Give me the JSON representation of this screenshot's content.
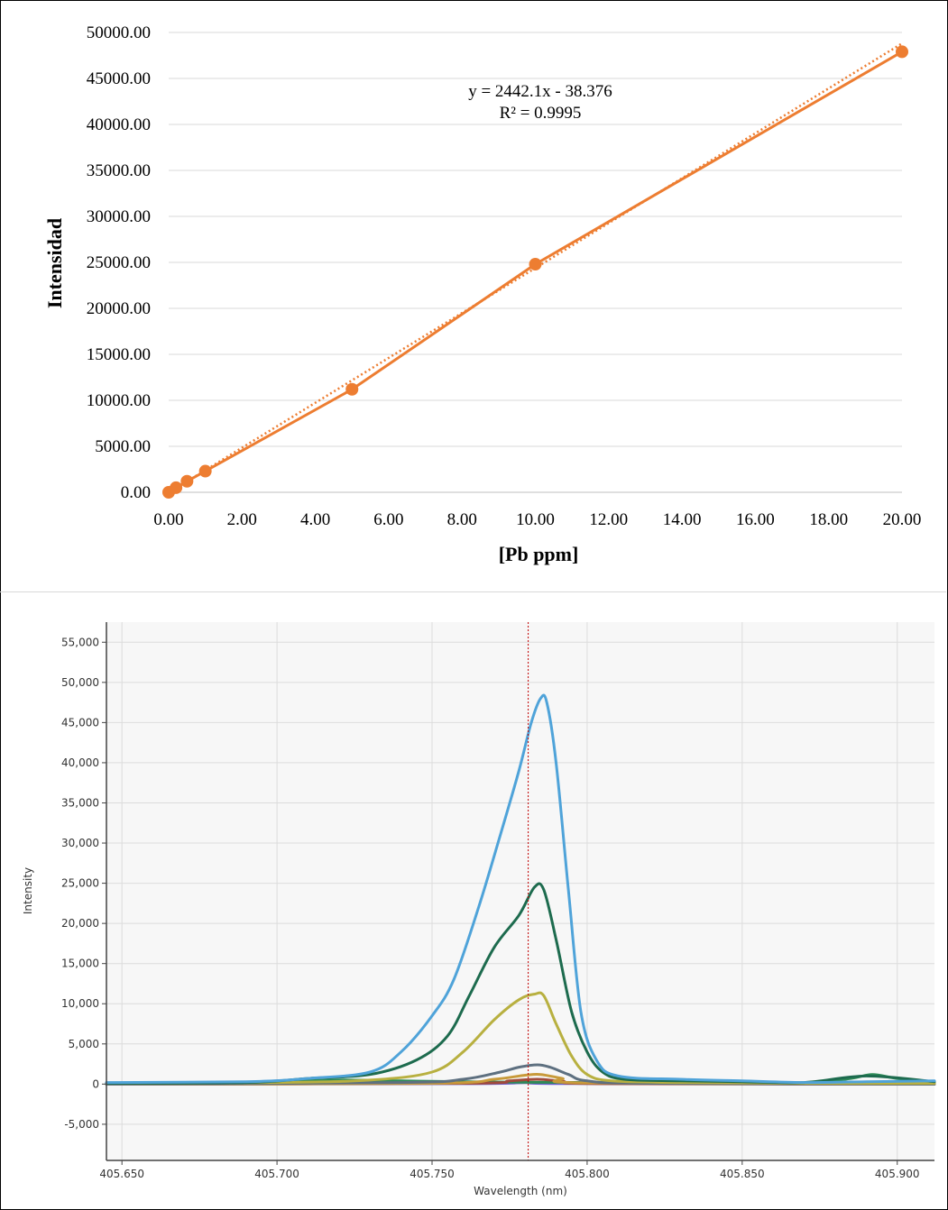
{
  "chart_data": [
    {
      "type": "scatter",
      "xlabel": "[Pb ppm]",
      "ylabel": "Intensidad",
      "xlim": [
        0,
        20
      ],
      "ylim": [
        0,
        50000
      ],
      "x_ticks": [
        "0.00",
        "2.00",
        "4.00",
        "6.00",
        "8.00",
        "10.00",
        "12.00",
        "14.00",
        "16.00",
        "18.00",
        "20.00"
      ],
      "y_ticks": [
        "0.00",
        "5000.00",
        "10000.00",
        "15000.00",
        "20000.00",
        "25000.00",
        "30000.00",
        "35000.00",
        "40000.00",
        "45000.00",
        "50000.00"
      ],
      "grid": true,
      "series": [
        {
          "color": "#ED7D31",
          "x": [
            0,
            0.2,
            0.5,
            1,
            5,
            10,
            20
          ],
          "y": [
            0,
            500,
            1200,
            2300,
            11200,
            24800,
            47900
          ]
        }
      ],
      "trendline": {
        "slope": 2442.1,
        "intercept": -38.376,
        "style": "dotted",
        "color": "#ED7D31"
      },
      "annotations": [
        "y = 2442.1x - 38.376",
        "R² = 0.9995"
      ]
    },
    {
      "type": "line",
      "xlabel": "Wavelength (nm)",
      "ylabel": "Intensity",
      "xlim": [
        405.645,
        405.912
      ],
      "ylim": [
        -9500,
        57500
      ],
      "x_ticks": [
        "405.650",
        "405.700",
        "405.750",
        "405.800",
        "405.850",
        "405.900"
      ],
      "y_ticks": [
        "-5,000",
        "0",
        "5,000",
        "10,000",
        "15,000",
        "20,000",
        "25,000",
        "30,000",
        "35,000",
        "40,000",
        "45,000",
        "50,000",
        "55,000"
      ],
      "grid": true,
      "reference_line": {
        "x": 405.781,
        "color": "#C00000",
        "style": "dotted"
      },
      "series": [
        {
          "color": "#4FA3D9",
          "x": [
            405.645,
            405.69,
            405.71,
            405.73,
            405.74,
            405.75,
            405.757,
            405.765,
            405.772,
            405.778,
            405.782,
            405.785,
            405.787,
            405.79,
            405.794,
            405.798,
            405.803,
            405.81,
            405.83,
            405.85,
            405.87,
            405.89,
            405.912
          ],
          "y": [
            200,
            300,
            700,
            1500,
            4000,
            8500,
            13000,
            22000,
            31000,
            39000,
            45000,
            48000,
            47500,
            40000,
            24000,
            9000,
            3000,
            1000,
            600,
            400,
            200,
            300,
            400
          ]
        },
        {
          "color": "#1D6B4E",
          "x": [
            405.645,
            405.69,
            405.71,
            405.73,
            405.745,
            405.755,
            405.762,
            405.77,
            405.778,
            405.783,
            405.786,
            405.79,
            405.795,
            405.8,
            405.805,
            405.812,
            405.83,
            405.85,
            405.87,
            405.89,
            405.912
          ],
          "y": [
            100,
            200,
            700,
            1200,
            3000,
            6000,
            11000,
            17000,
            21000,
            24500,
            24200,
            18000,
            9000,
            4000,
            1500,
            600,
            400,
            300,
            200,
            1000,
            300
          ]
        },
        {
          "color": "#B8B040",
          "x": [
            405.645,
            405.7,
            405.73,
            405.75,
            405.76,
            405.77,
            405.778,
            405.783,
            405.786,
            405.79,
            405.795,
            405.8,
            405.808,
            405.83,
            405.87,
            405.912
          ],
          "y": [
            100,
            200,
            500,
            1500,
            4000,
            8000,
            10500,
            11200,
            11000,
            7500,
            3500,
            1200,
            400,
            200,
            100,
            100
          ]
        },
        {
          "color": "#5E7080",
          "x": [
            405.645,
            405.74,
            405.76,
            405.772,
            405.778,
            405.784,
            405.788,
            405.794,
            405.8,
            405.82,
            405.912
          ],
          "y": [
            0,
            200,
            600,
            1500,
            2100,
            2400,
            2100,
            1200,
            400,
            100,
            0
          ]
        },
        {
          "color": "#C89A3A",
          "x": [
            405.645,
            405.75,
            405.77,
            405.78,
            405.785,
            405.792,
            405.8,
            405.912
          ],
          "y": [
            0,
            100,
            600,
            1100,
            1200,
            700,
            150,
            0
          ]
        },
        {
          "color": "#A04A3A",
          "x": [
            405.645,
            405.76,
            405.775,
            405.784,
            405.792,
            405.805,
            405.912
          ],
          "y": [
            0,
            100,
            400,
            600,
            350,
            50,
            0
          ]
        },
        {
          "color": "#2E8B57",
          "x": [
            405.645,
            405.7,
            405.72,
            405.74,
            405.76,
            405.8,
            405.83,
            405.85,
            405.87,
            405.885,
            405.892,
            405.9,
            405.912
          ],
          "y": [
            0,
            300,
            500,
            400,
            300,
            200,
            400,
            200,
            100,
            700,
            1200,
            700,
            300
          ]
        },
        {
          "color": "#6A5ACD",
          "x": [
            405.645,
            405.76,
            405.78,
            405.795,
            405.912
          ],
          "y": [
            0,
            50,
            200,
            60,
            0
          ]
        }
      ]
    }
  ]
}
